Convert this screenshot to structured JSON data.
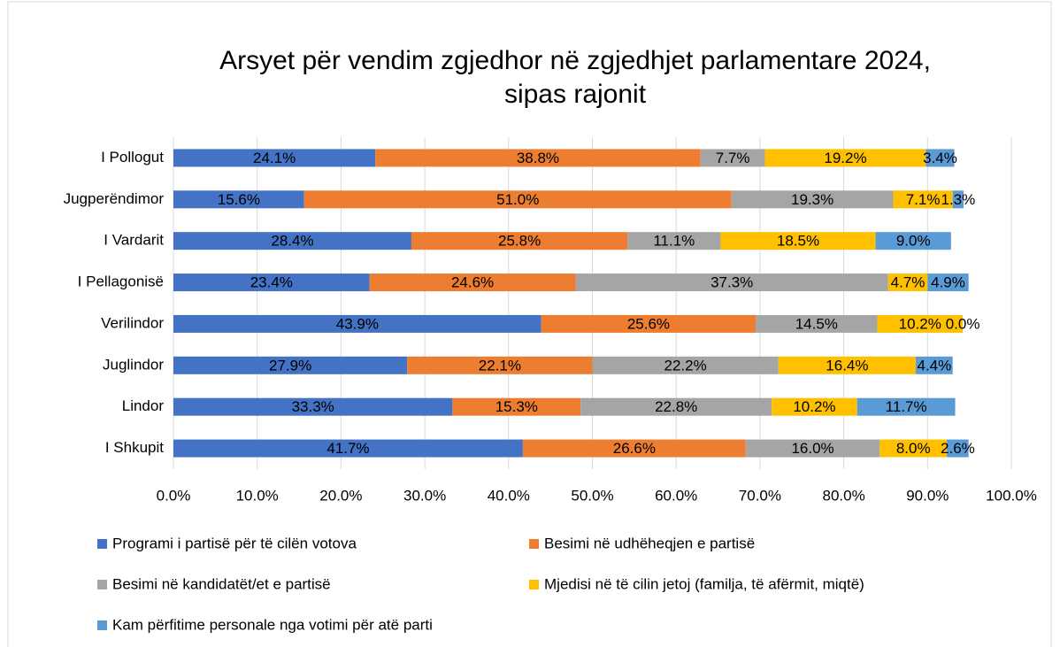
{
  "chart_data": {
    "type": "stacked-barh",
    "title": [
      "Arsyet për vendim zgjedhor në zgjedhjet parlamentare 2024,",
      "sipas rajonit"
    ],
    "categories": [
      "I Pollogut",
      "Jugperëndimor",
      "I Vardarit",
      "I Pellagonisë",
      "Verilindor",
      "Juglindor",
      "Lindor",
      "I Shkupit"
    ],
    "series": [
      {
        "name": "Programi i partisë për të cilën votova",
        "color": "#4472c4",
        "values": [
          24.1,
          15.6,
          28.4,
          23.4,
          43.9,
          27.9,
          33.3,
          41.7
        ],
        "value_labels": [
          "24.1%",
          "15.6%",
          "28.4%",
          "23.4%",
          "43.9%",
          "27.9%",
          "33.3%",
          "41.7%"
        ]
      },
      {
        "name": "Besimi në udhëheqjen e partisë",
        "color": "#ed7d31",
        "values": [
          38.8,
          51.0,
          25.8,
          24.6,
          25.6,
          22.1,
          15.3,
          26.6
        ],
        "value_labels": [
          "38.8%",
          "51.0%",
          "25.8%",
          "24.6%",
          "25.6%",
          "22.1%",
          "15.3%",
          "26.6%"
        ]
      },
      {
        "name": "Besimi në kandidatët/et e partisë",
        "color": "#a5a5a5",
        "values": [
          7.7,
          19.3,
          11.1,
          37.3,
          14.5,
          22.2,
          22.8,
          16.0
        ],
        "value_labels": [
          "7.7%",
          "19.3%",
          "11.1%",
          "37.3%",
          "14.5%",
          "22.2%",
          "22.8%",
          "16.0%"
        ]
      },
      {
        "name": "Mjedisi në të cilin jetoj (familja, të afërmit, miqtë)",
        "color": "#ffc000",
        "values": [
          19.2,
          7.1,
          18.5,
          4.7,
          10.2,
          16.4,
          10.2,
          8.0
        ],
        "value_labels": [
          "19.2%",
          "7.1%",
          "18.5%",
          "4.7%",
          "10.2%",
          "16.4%",
          "10.2%",
          "8.0%"
        ]
      },
      {
        "name": "Kam përfitime personale nga votimi për atë parti",
        "color": "#5b9bd5",
        "values": [
          3.4,
          1.3,
          9.0,
          4.9,
          0.0,
          4.4,
          11.7,
          2.6
        ],
        "value_labels": [
          "3.4%",
          "1.3%",
          "9.0%",
          "4.9%",
          "0.0%",
          "4.4%",
          "11.7%",
          "2.6%"
        ]
      }
    ],
    "xlim": [
      0,
      100
    ],
    "xticks": [
      {
        "value": 0,
        "label": "0.0%"
      },
      {
        "value": 10,
        "label": "10.0%"
      },
      {
        "value": 20,
        "label": "20.0%"
      },
      {
        "value": 30,
        "label": "30.0%"
      },
      {
        "value": 40,
        "label": "40.0%"
      },
      {
        "value": 50,
        "label": "50.0%"
      },
      {
        "value": 60,
        "label": "60.0%"
      },
      {
        "value": 70,
        "label": "70.0%"
      },
      {
        "value": 80,
        "label": "80.0%"
      },
      {
        "value": 90,
        "label": "90.0%"
      },
      {
        "value": 100,
        "label": "100.0%"
      }
    ],
    "grid": true,
    "legend": "bottom"
  }
}
